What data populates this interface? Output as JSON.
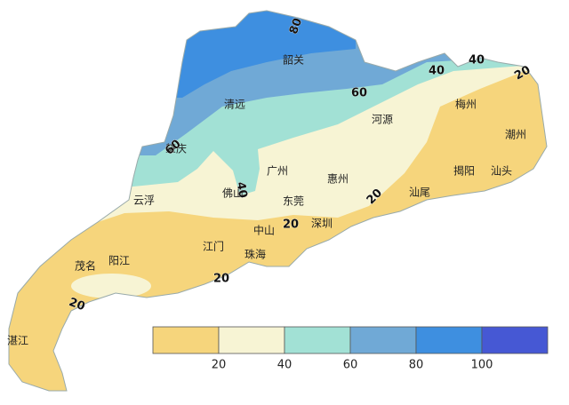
{
  "map": {
    "cities": [
      "韶关",
      "清远",
      "肇庆",
      "河源",
      "梅州",
      "潮州",
      "揭阳",
      "汕头",
      "汕尾",
      "惠州",
      "广州",
      "佛山",
      "东莞",
      "云浮",
      "深圳",
      "中山",
      "江门",
      "珠海",
      "阳江",
      "茂名",
      "湛江"
    ],
    "contour_labels": [
      80,
      60,
      40,
      40,
      20,
      60,
      40,
      20,
      20,
      20,
      20
    ],
    "legend": {
      "colors": [
        "#f6d57c",
        "#f7f4d4",
        "#a2e1d5",
        "#70a9d6",
        "#3e8fe0",
        "#4658d4"
      ],
      "ticks": [
        20,
        40,
        60,
        80,
        100
      ]
    }
  }
}
